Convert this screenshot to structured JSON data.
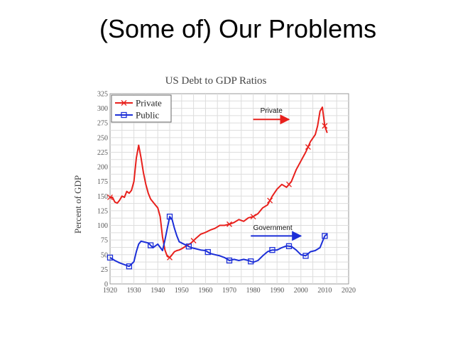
{
  "slide": {
    "title": "(Some of) Our Problems"
  },
  "chart_data": {
    "type": "line",
    "title": "US Debt to GDP Ratios",
    "xlabel": "",
    "ylabel": "Percent of GDP",
    "xlim": [
      1920,
      2020
    ],
    "ylim": [
      0,
      325
    ],
    "xticks": [
      1920,
      1930,
      1940,
      1950,
      1960,
      1970,
      1980,
      1990,
      2000,
      2010,
      2020
    ],
    "yticks": [
      0,
      25,
      50,
      75,
      100,
      125,
      150,
      175,
      200,
      225,
      250,
      275,
      300,
      325
    ],
    "grid": true,
    "legend_position": "top-left",
    "series": [
      {
        "name": "Private",
        "color": "#e8201c",
        "marker": "x",
        "x": [
          1920,
          1921,
          1922,
          1923,
          1924,
          1925,
          1926,
          1927,
          1928,
          1929,
          1930,
          1931,
          1932,
          1933,
          1934,
          1935,
          1936,
          1937,
          1938,
          1939,
          1940,
          1941,
          1942,
          1943,
          1944,
          1945,
          1946,
          1947,
          1948,
          1949,
          1950,
          1952,
          1954,
          1956,
          1958,
          1960,
          1962,
          1964,
          1966,
          1968,
          1970,
          1972,
          1974,
          1976,
          1978,
          1980,
          1982,
          1984,
          1986,
          1988,
          1990,
          1992,
          1994,
          1996,
          1998,
          2000,
          2002,
          2004,
          2006,
          2007,
          2008,
          2009,
          2010,
          2011
        ],
        "values": [
          148,
          148,
          140,
          138,
          143,
          150,
          148,
          158,
          155,
          160,
          175,
          215,
          237,
          215,
          190,
          170,
          155,
          145,
          140,
          135,
          130,
          115,
          80,
          58,
          47,
          45,
          50,
          55,
          57,
          58,
          60,
          65,
          70,
          78,
          85,
          88,
          92,
          95,
          100,
          100,
          102,
          105,
          110,
          107,
          113,
          115,
          120,
          130,
          135,
          150,
          162,
          170,
          165,
          175,
          195,
          210,
          225,
          243,
          255,
          270,
          295,
          302,
          270,
          258
        ],
        "markers_at": [
          1920,
          1945,
          1955,
          1970,
          1980,
          1987,
          1995,
          2003,
          2010
        ]
      },
      {
        "name": "Public",
        "color": "#1c2fd8",
        "marker": "square",
        "x": [
          1920,
          1922,
          1924,
          1926,
          1928,
          1930,
          1931,
          1932,
          1933,
          1934,
          1936,
          1938,
          1940,
          1942,
          1943,
          1944,
          1945,
          1946,
          1947,
          1948,
          1949,
          1950,
          1952,
          1954,
          1956,
          1958,
          1960,
          1962,
          1964,
          1966,
          1968,
          1970,
          1972,
          1974,
          1976,
          1978,
          1980,
          1982,
          1984,
          1986,
          1988,
          1990,
          1992,
          1994,
          1996,
          1998,
          2000,
          2002,
          2004,
          2006,
          2008,
          2009,
          2010,
          2011
        ],
        "values": [
          45,
          40,
          36,
          33,
          30,
          38,
          55,
          68,
          73,
          72,
          70,
          62,
          68,
          57,
          75,
          95,
          115,
          110,
          95,
          82,
          72,
          70,
          66,
          62,
          60,
          58,
          57,
          52,
          50,
          48,
          45,
          40,
          42,
          40,
          42,
          40,
          37,
          40,
          48,
          55,
          58,
          58,
          62,
          65,
          64,
          58,
          50,
          48,
          55,
          57,
          62,
          72,
          82,
          85
        ],
        "markers_at": [
          1920,
          1928,
          1937,
          1945,
          1953,
          1961,
          1970,
          1979,
          1988,
          1995,
          2002,
          2010
        ]
      }
    ],
    "annotations": [
      {
        "text": "Private",
        "color": "#1c2fd8",
        "arrow_color": "#e8201c",
        "arrow_from": [
          1980,
          281
        ],
        "arrow_to": [
          1995,
          281
        ],
        "label_at": [
          1983,
          292
        ]
      },
      {
        "text": "Government",
        "color": "#1c2fd8",
        "arrow_color": "#1c2fd8",
        "arrow_from": [
          1979,
          82
        ],
        "arrow_to": [
          2000,
          82
        ],
        "label_at": [
          1980,
          92
        ]
      }
    ]
  }
}
